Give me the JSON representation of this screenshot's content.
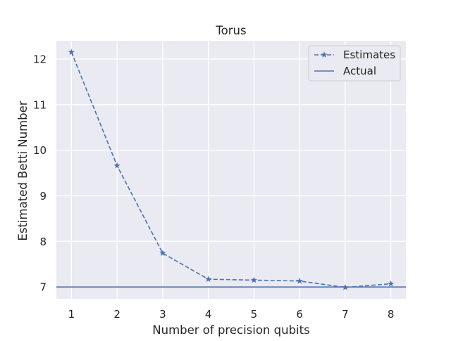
{
  "chart_data": {
    "type": "line",
    "title": "Torus",
    "xlabel": "Number of precision qubits",
    "ylabel": "Estimated Betti Number",
    "x": [
      1,
      2,
      3,
      4,
      5,
      6,
      7,
      8
    ],
    "xticks": [
      "1",
      "2",
      "3",
      "4",
      "5",
      "6",
      "7",
      "8"
    ],
    "yticks": [
      "7",
      "8",
      "9",
      "10",
      "11",
      "12"
    ],
    "xlim": [
      0.67,
      8.33
    ],
    "ylim": [
      6.74,
      12.4
    ],
    "grid": true,
    "legend_position": "top-right",
    "series": [
      {
        "name": "Estimates",
        "style": "dashed-star",
        "color": "#4c72b0",
        "values": [
          12.15,
          9.66,
          7.74,
          7.17,
          7.15,
          7.13,
          6.99,
          7.07
        ]
      },
      {
        "name": "Actual",
        "style": "solid-hline",
        "color": "#4c72b0",
        "y": 7
      }
    ]
  },
  "style": {
    "plot_background": "#eaeaf2",
    "grid_color": "#ffffff",
    "series_color": "#4c72b0"
  }
}
